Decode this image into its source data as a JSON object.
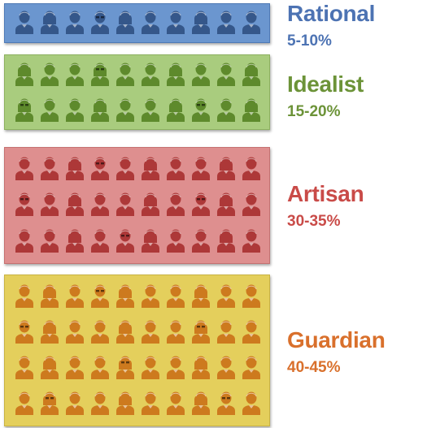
{
  "groups": [
    {
      "name": "Rational",
      "percent": "5-10%",
      "colors": {
        "panel": "#6b96cf",
        "border": "#4f7ab6",
        "icon": "#35578a",
        "label": "#4d73b3"
      },
      "rows": 1
    },
    {
      "name": "Idealist",
      "percent": "15-20%",
      "colors": {
        "panel": "#a9cc7e",
        "border": "#8db15f",
        "icon": "#5e8a2c",
        "label": "#6c9338"
      },
      "rows": 2
    },
    {
      "name": "Artisan",
      "percent": "30-35%",
      "colors": {
        "panel": "#de8f8f",
        "border": "#c57171",
        "icon": "#ad3838",
        "label": "#c94b48"
      },
      "rows": 3
    },
    {
      "name": "Guardian",
      "percent": "40-45%",
      "colors": {
        "panel": "#e4cf5c",
        "border": "#c9b342",
        "icon": "#cd7a1e",
        "label": "#d9702c"
      },
      "rows": 4
    }
  ],
  "icons_per_row": 10,
  "icon_name": "person-icon"
}
